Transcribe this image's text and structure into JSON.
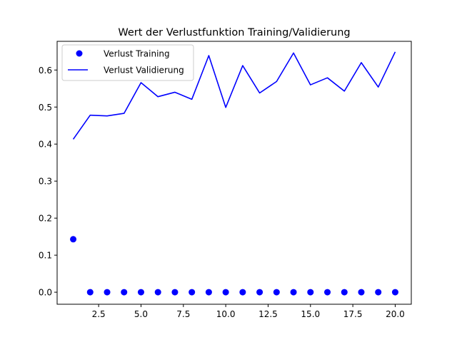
{
  "chart_data": {
    "type": "line",
    "title": "Wert der Verlustfunktion Training/Validierung",
    "xlabel": "",
    "ylabel": "",
    "xlim": [
      0.05,
      20.95
    ],
    "ylim": [
      -0.0325,
      0.6775
    ],
    "x_ticks": [
      2.5,
      5.0,
      7.5,
      10.0,
      12.5,
      15.0,
      17.5,
      20.0
    ],
    "x_tick_labels": [
      "2.5",
      "5.0",
      "7.5",
      "10.0",
      "12.5",
      "15.0",
      "17.5",
      "20.0"
    ],
    "y_ticks": [
      0.0,
      0.1,
      0.2,
      0.3,
      0.4,
      0.5,
      0.6
    ],
    "y_tick_labels": [
      "0.0",
      "0.1",
      "0.2",
      "0.3",
      "0.4",
      "0.5",
      "0.6"
    ],
    "grid": false,
    "legend_position": "upper-left",
    "x": [
      1,
      2,
      3,
      4,
      5,
      6,
      7,
      8,
      9,
      10,
      11,
      12,
      13,
      14,
      15,
      16,
      17,
      18,
      19,
      20
    ],
    "series": [
      {
        "name": "Verlust Training",
        "kind": "scatter",
        "color": "#0000ff",
        "values": [
          0.143,
          0.0,
          0.0,
          0.0,
          0.0,
          0.0,
          0.0,
          0.0,
          0.0,
          0.0,
          0.0,
          0.0,
          0.0,
          0.0,
          0.0,
          0.0,
          0.0,
          0.0,
          0.0,
          0.0
        ]
      },
      {
        "name": "Verlust Validierung",
        "kind": "line",
        "color": "#0000ff",
        "values": [
          0.413,
          0.478,
          0.476,
          0.483,
          0.566,
          0.528,
          0.54,
          0.521,
          0.639,
          0.499,
          0.612,
          0.538,
          0.569,
          0.646,
          0.56,
          0.579,
          0.543,
          0.62,
          0.554,
          0.649
        ]
      }
    ]
  }
}
